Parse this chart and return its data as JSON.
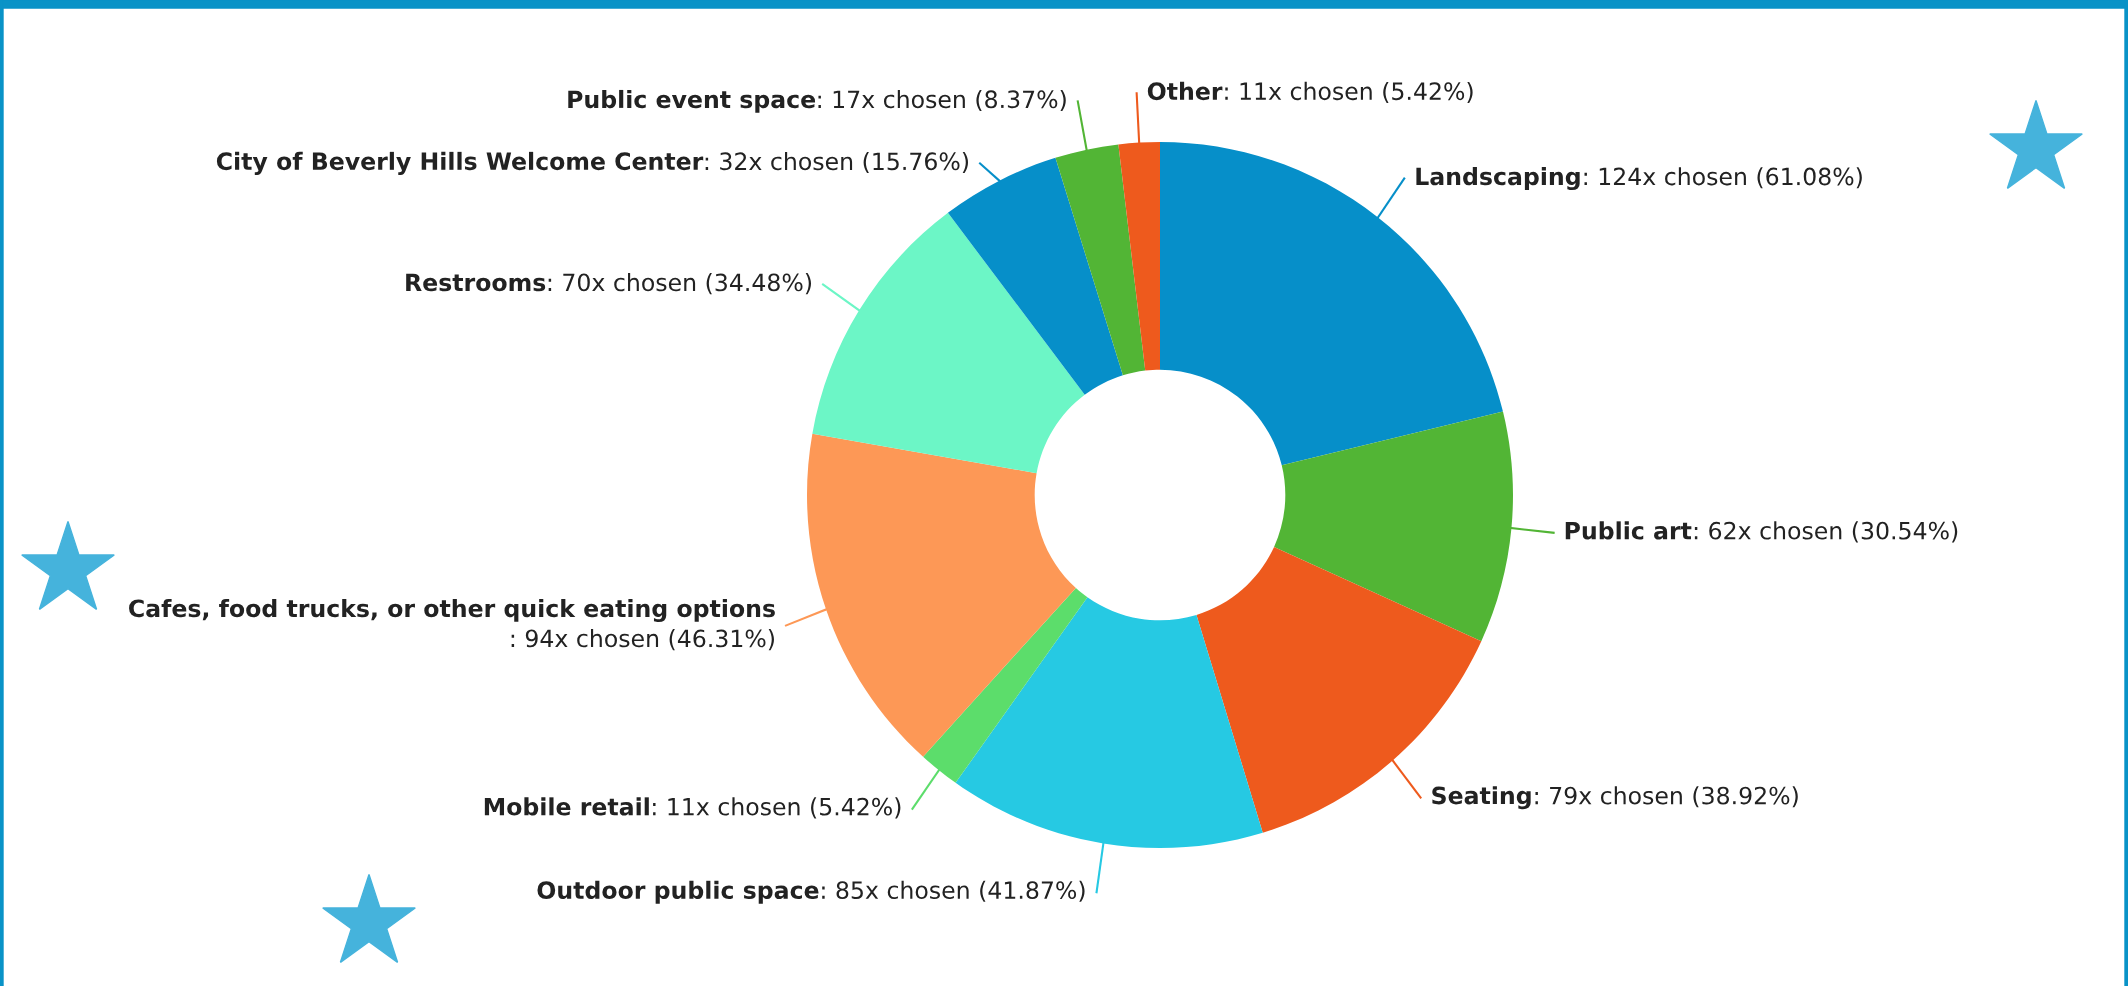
{
  "chart_data": {
    "type": "donut",
    "categories": [
      "Landscaping",
      "Public art",
      "Seating",
      "Outdoor public space",
      "Mobile retail",
      "Cafes, food trucks, or other quick eating options",
      "Restrooms",
      "City of Beverly Hills Welcome Center",
      "Public event space",
      "Other"
    ],
    "values": [
      124,
      62,
      79,
      85,
      11,
      94,
      70,
      32,
      17,
      11
    ],
    "value_labels": [
      ": 124x chosen (61.08%)",
      ": 62x chosen (30.54%)",
      ": 79x chosen (38.92%)",
      ": 85x chosen (41.87%)",
      ": 11x chosen (5.42%)",
      ": 94x chosen (46.31%)",
      ": 70x chosen (34.48%)",
      ": 32x chosen (15.76%)",
      ": 17x chosen (8.37%)",
      ": 11x chosen (5.42%)"
    ],
    "colors": [
      "#068fc9",
      "#52b535",
      "#ee5a1d",
      "#26c9e3",
      "#5cdd6b",
      "#fd9856",
      "#6cf6c6",
      "#068fc9",
      "#52b535",
      "#ee5a1d"
    ]
  }
}
